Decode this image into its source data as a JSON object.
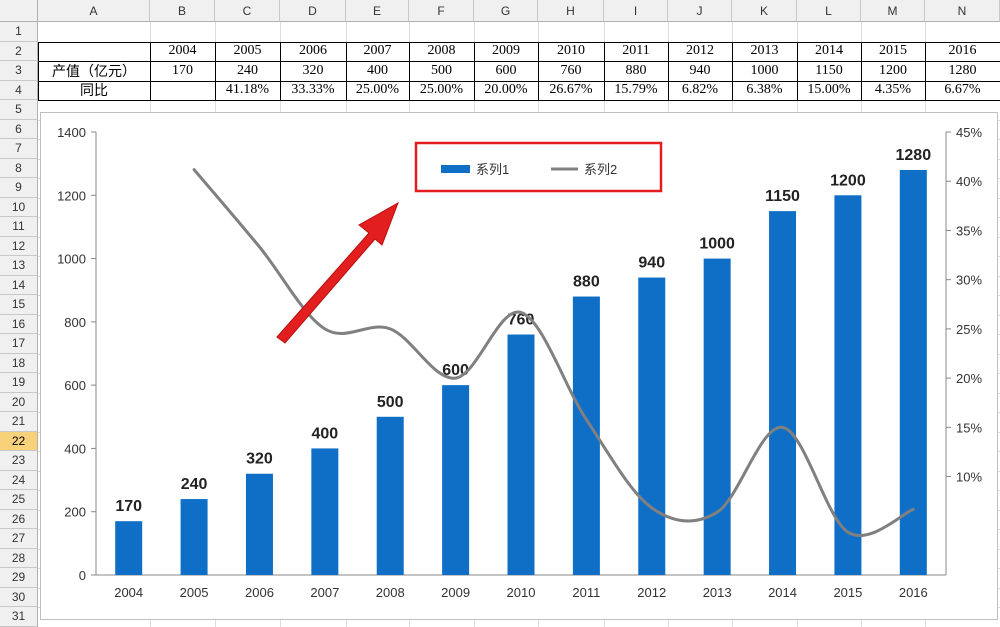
{
  "spreadsheet": {
    "columns": [
      "A",
      "B",
      "C",
      "D",
      "E",
      "F",
      "G",
      "H",
      "I",
      "J",
      "K",
      "L",
      "M",
      "N"
    ],
    "rows": [
      "1",
      "2",
      "3",
      "4",
      "5",
      "6",
      "7",
      "8",
      "9",
      "10",
      "11",
      "12",
      "13",
      "14",
      "15",
      "16",
      "17",
      "18",
      "19",
      "20",
      "21",
      "22",
      "23",
      "24",
      "25",
      "26",
      "27",
      "28",
      "29",
      "30",
      "31"
    ],
    "selected_row": "22",
    "table": {
      "years": [
        "2004",
        "2005",
        "2006",
        "2007",
        "2008",
        "2009",
        "2010",
        "2011",
        "2012",
        "2013",
        "2014",
        "2015",
        "2016"
      ],
      "row3_label": "产值（亿元）",
      "output": [
        "170",
        "240",
        "320",
        "400",
        "500",
        "600",
        "760",
        "880",
        "940",
        "1000",
        "1150",
        "1200",
        "1280"
      ],
      "row4_label": "同比",
      "yoy": [
        "",
        "41.18%",
        "33.33%",
        "25.00%",
        "25.00%",
        "20.00%",
        "26.67%",
        "15.79%",
        "6.82%",
        "6.38%",
        "15.00%",
        "4.35%",
        "6.67%"
      ]
    }
  },
  "chart_data": {
    "type": "bar",
    "categories": [
      "2004",
      "2005",
      "2006",
      "2007",
      "2008",
      "2009",
      "2010",
      "2011",
      "2012",
      "2013",
      "2014",
      "2015",
      "2016"
    ],
    "series": [
      {
        "name": "系列1",
        "type": "bar",
        "axis": "left",
        "color": "#0f6fc6",
        "values": [
          170,
          240,
          320,
          400,
          500,
          600,
          760,
          880,
          940,
          1000,
          1150,
          1200,
          1280
        ]
      },
      {
        "name": "系列2",
        "type": "line",
        "smooth": true,
        "axis": "right",
        "color": "#808080",
        "values": [
          null,
          0.4118,
          0.3333,
          0.25,
          0.25,
          0.2,
          0.2667,
          0.1579,
          0.0682,
          0.0638,
          0.15,
          0.0435,
          0.0667
        ]
      }
    ],
    "ylim": [
      0,
      1400
    ],
    "yticks": [
      "0",
      "200",
      "400",
      "600",
      "800",
      "1000",
      "1200",
      "1400"
    ],
    "y2lim": [
      0,
      0.45
    ],
    "y2ticks": [
      "10%",
      "15%",
      "20%",
      "25%",
      "30%",
      "35%",
      "40%",
      "45%"
    ],
    "y2tick_values": [
      0.1,
      0.15,
      0.2,
      0.25,
      0.3,
      0.35,
      0.4,
      0.45
    ],
    "legend": {
      "position": "top-center",
      "items": [
        "系列1",
        "系列2"
      ]
    },
    "annotation": {
      "type": "red-arrow-with-box",
      "color": "#e31e1e"
    },
    "grid": false
  }
}
